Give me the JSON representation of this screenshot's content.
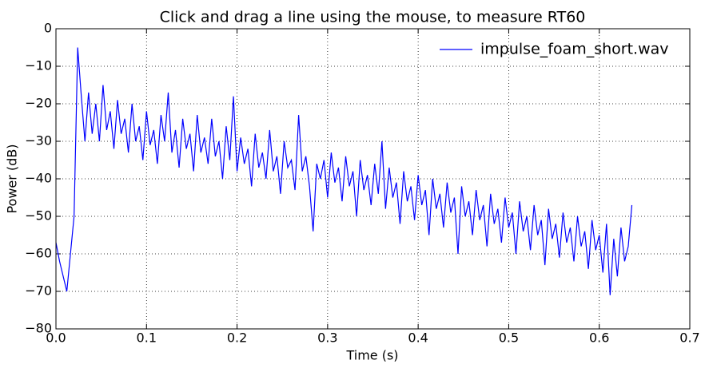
{
  "chart_data": {
    "type": "line",
    "title": "Click and drag a line using the mouse, to measure RT60",
    "xlabel": "Time (s)",
    "ylabel": "Power (dB)",
    "xlim": [
      0,
      0.7
    ],
    "xticks": [
      {
        "value": 0,
        "label": "0.0"
      },
      0.1,
      0.2,
      0.3,
      0.4,
      0.5,
      0.6,
      0.7
    ],
    "ylim": [
      -80,
      0
    ],
    "yticks": [
      {
        "value": -80,
        "label": "−80"
      },
      {
        "value": -70,
        "label": "−70"
      },
      {
        "value": -60,
        "label": "−60"
      },
      {
        "value": -50,
        "label": "−50"
      },
      {
        "value": -40,
        "label": "−40"
      },
      {
        "value": -30,
        "label": "−30"
      },
      {
        "value": -20,
        "label": "−20"
      },
      {
        "value": -10,
        "label": "−10"
      },
      0
    ],
    "grid": true,
    "legend": "upper right",
    "x": [
      0,
      0.004,
      0.008,
      0.012,
      0.016,
      0.02,
      0.024,
      0.028,
      0.032,
      0.036,
      0.04,
      0.044,
      0.048,
      0.052,
      0.056,
      0.06,
      0.064,
      0.068,
      0.072,
      0.076,
      0.08,
      0.084,
      0.088,
      0.092,
      0.096,
      0.1,
      0.104,
      0.108,
      0.112,
      0.116,
      0.12,
      0.124,
      0.128,
      0.132,
      0.136,
      0.14,
      0.144,
      0.148,
      0.152,
      0.156,
      0.16,
      0.164,
      0.168,
      0.172,
      0.176,
      0.18,
      0.184,
      0.188,
      0.192,
      0.196,
      0.2,
      0.204,
      0.208,
      0.212,
      0.216,
      0.22,
      0.224,
      0.228,
      0.232,
      0.236,
      0.24,
      0.244,
      0.248,
      0.252,
      0.256,
      0.26,
      0.264,
      0.268,
      0.272,
      0.276,
      0.28,
      0.284,
      0.288,
      0.292,
      0.296,
      0.3,
      0.304,
      0.308,
      0.312,
      0.316,
      0.32,
      0.324,
      0.328,
      0.332,
      0.336,
      0.34,
      0.344,
      0.348,
      0.352,
      0.356,
      0.36,
      0.364,
      0.368,
      0.372,
      0.376,
      0.38,
      0.384,
      0.388,
      0.392,
      0.396,
      0.4,
      0.404,
      0.408,
      0.412,
      0.416,
      0.42,
      0.424,
      0.428,
      0.432,
      0.436,
      0.44,
      0.444,
      0.448,
      0.452,
      0.456,
      0.46,
      0.464,
      0.468,
      0.472,
      0.476,
      0.48,
      0.484,
      0.488,
      0.492,
      0.496,
      0.5,
      0.504,
      0.508,
      0.512,
      0.516,
      0.52,
      0.524,
      0.528,
      0.532,
      0.536,
      0.54,
      0.544,
      0.548,
      0.552,
      0.556,
      0.56,
      0.564,
      0.568,
      0.572,
      0.576,
      0.58,
      0.584,
      0.588,
      0.592,
      0.596,
      0.6,
      0.604,
      0.608,
      0.612,
      0.616,
      0.62,
      0.624,
      0.628,
      0.632,
      0.636
    ],
    "series": [
      {
        "name": "impulse_foam_short.wav",
        "color": "#0000ff",
        "values": [
          -57,
          -62,
          -66,
          -70,
          -60,
          -50,
          -5,
          -18,
          -30,
          -17,
          -28,
          -20,
          -30,
          -15,
          -27,
          -22,
          -32,
          -19,
          -28,
          -24,
          -33,
          -20,
          -30,
          -26,
          -35,
          -22,
          -31,
          -27,
          -36,
          -23,
          -30,
          -17,
          -33,
          -27,
          -37,
          -24,
          -32,
          -28,
          -38,
          -23,
          -33,
          -29,
          -36,
          -24,
          -34,
          -30,
          -40,
          -26,
          -35,
          -18,
          -38,
          -29,
          -36,
          -32,
          -42,
          -28,
          -37,
          -33,
          -40,
          -27,
          -38,
          -34,
          -44,
          -30,
          -37,
          -35,
          -43,
          -23,
          -38,
          -34,
          -42,
          -54,
          -36,
          -40,
          -35,
          -45,
          -33,
          -41,
          -37,
          -46,
          -34,
          -42,
          -38,
          -50,
          -35,
          -43,
          -39,
          -47,
          -36,
          -44,
          -30,
          -48,
          -37,
          -45,
          -41,
          -52,
          -38,
          -46,
          -42,
          -51,
          -39,
          -47,
          -43,
          -55,
          -40,
          -48,
          -44,
          -53,
          -41,
          -49,
          -45,
          -60,
          -42,
          -50,
          -46,
          -55,
          -43,
          -51,
          -47,
          -58,
          -44,
          -52,
          -48,
          -57,
          -45,
          -53,
          -49,
          -60,
          -46,
          -54,
          -50,
          -59,
          -47,
          -55,
          -51,
          -63,
          -48,
          -56,
          -52,
          -61,
          -49,
          -57,
          -53,
          -62,
          -50,
          -58,
          -54,
          -64,
          -51,
          -59,
          -55,
          -65,
          -52,
          -71,
          -56,
          -66,
          -53,
          -62,
          -58,
          -47
        ]
      }
    ]
  }
}
